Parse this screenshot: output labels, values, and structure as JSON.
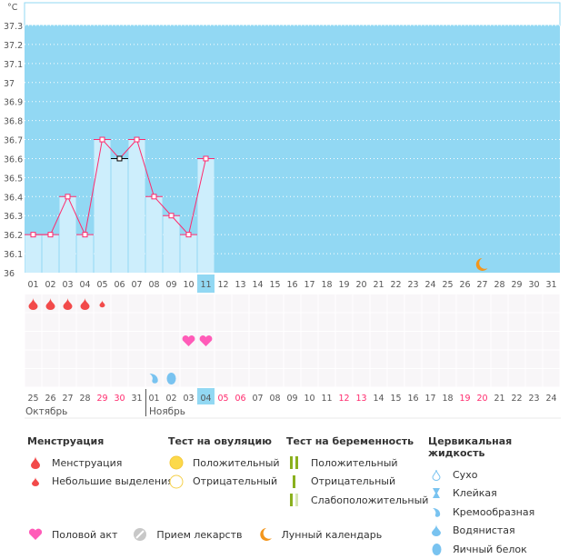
{
  "chart_data": {
    "type": "bar+line",
    "ylabel": "°C",
    "ylim": [
      36,
      37.3
    ],
    "yticks": [
      "36",
      "36.1",
      "36.2",
      "36.3",
      "36.4",
      "36.5",
      "36.6",
      "36.7",
      "36.8",
      "36.9",
      "37",
      "37.1",
      "37.2",
      "37.3"
    ],
    "cycle_days": [
      "01",
      "02",
      "03",
      "04",
      "05",
      "06",
      "07",
      "08",
      "09",
      "10",
      "11",
      "12",
      "13",
      "14",
      "15",
      "16",
      "17",
      "18",
      "19",
      "20",
      "21",
      "22",
      "23",
      "24",
      "25",
      "26",
      "27",
      "28",
      "29",
      "30",
      "31"
    ],
    "highlight_cycle_day": "11",
    "temperatures": [
      36.2,
      36.2,
      36.4,
      36.2,
      36.7,
      36.6,
      36.7,
      36.4,
      36.3,
      36.2,
      36.6
    ],
    "dark_marker_day": "06",
    "moon_day": "27",
    "dates": [
      "25",
      "26",
      "27",
      "28",
      "29",
      "30",
      "31",
      "01",
      "02",
      "03",
      "04",
      "05",
      "06",
      "07",
      "08",
      "09",
      "10",
      "11",
      "12",
      "13",
      "14",
      "15",
      "16",
      "17",
      "18",
      "19",
      "20",
      "21",
      "22",
      "23",
      "24"
    ],
    "weekend_dates_idx": [
      4,
      5,
      11,
      12,
      18,
      19,
      25,
      26
    ],
    "highlight_date": "04",
    "months": [
      "Октябрь",
      "Ноябрь"
    ],
    "markers": [
      {
        "row": 0,
        "day": 0,
        "type": "menstruation"
      },
      {
        "row": 0,
        "day": 1,
        "type": "menstruation"
      },
      {
        "row": 0,
        "day": 2,
        "type": "menstruation"
      },
      {
        "row": 0,
        "day": 3,
        "type": "menstruation"
      },
      {
        "row": 0,
        "day": 4,
        "type": "spotting"
      },
      {
        "row": 2,
        "day": 9,
        "type": "intercourse"
      },
      {
        "row": 2,
        "day": 10,
        "type": "intercourse"
      },
      {
        "row": 4,
        "day": 7,
        "type": "creamy"
      },
      {
        "row": 4,
        "day": 8,
        "type": "eggwhite"
      }
    ],
    "colors": {
      "sky": "#92d8f3",
      "bar": "#cdeefc",
      "line": "#ff2a6d",
      "drop": "#f24a4a",
      "heart": "#ff5bb8",
      "fluid": "#79c3f0",
      "moon": "#f3961c",
      "weekend": "#ff2a6d"
    }
  },
  "legend": {
    "menstruation": {
      "title": "Менструация",
      "items": [
        "Менструация",
        "Небольшие выделения"
      ]
    },
    "ovulation": {
      "title": "Тест на овуляцию",
      "items": [
        "Положительный",
        "Отрицательный"
      ]
    },
    "pregnancy": {
      "title": "Тест на беременность",
      "items": [
        "Положительный",
        "Отрицательный",
        "Слабоположительный"
      ]
    },
    "cervical": {
      "title": "Цервикальная жидкость",
      "items": [
        "Сухо",
        "Клейкая",
        "Кремообразная",
        "Водянистая",
        "Яичный белок"
      ]
    },
    "bottom": [
      "Половой акт",
      "Прием лекарств",
      "Лунный календарь"
    ]
  }
}
